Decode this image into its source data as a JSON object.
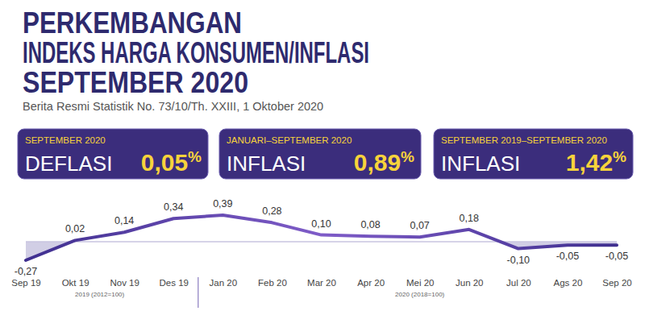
{
  "chart_data": {
    "type": "line",
    "title": [
      "PERKEMBANGAN",
      "INDEKS HARGA KONSUMEN/INFLASI",
      "SEPTEMBER 2020"
    ],
    "subtitle": "Berita Resmi Statistik No. 73/10/Th. XXIII, 1 Oktober 2020",
    "highlights": [
      {
        "period": "SEPTEMBER 2020",
        "label": "DEFLASI",
        "value": 0.05,
        "value_label": "0,05",
        "unit": "%"
      },
      {
        "period": "JANUARI–SEPTEMBER 2020",
        "label": "INFLASI",
        "value": 0.89,
        "value_label": "0,89",
        "unit": "%"
      },
      {
        "period": "SEPTEMBER 2019–SEPTEMBER 2020",
        "label": "INFLASI",
        "value": 1.42,
        "value_label": "1,42",
        "unit": "%"
      }
    ],
    "categories": [
      "Sep 19",
      "Okt 19",
      "Nov 19",
      "Des 19",
      "Jan 20",
      "Feb 20",
      "Mar 20",
      "Apr 20",
      "Mei 20",
      "Jun 20",
      "Jul 20",
      "Ags 20",
      "Sep 20"
    ],
    "values": [
      -0.27,
      0.02,
      0.14,
      0.34,
      0.39,
      0.28,
      0.1,
      0.08,
      0.07,
      0.18,
      -0.1,
      -0.05,
      -0.05
    ],
    "value_labels": [
      "-0,27",
      "0,02",
      "0,14",
      "0,34",
      "0,39",
      "0,28",
      "0,10",
      "0,08",
      "0,07",
      "0,18",
      "-0,10",
      "-0,05",
      "-0,05"
    ],
    "x_groups": [
      {
        "label": "2019 (2012=100)",
        "start": "Sep 19",
        "end": "Des 19"
      },
      {
        "label": "2020 (2018=100)",
        "start": "Jan 20",
        "end": "Sep 20"
      }
    ],
    "color": "#3f2f8f",
    "data_labels": true,
    "tick_labels": "x"
  }
}
